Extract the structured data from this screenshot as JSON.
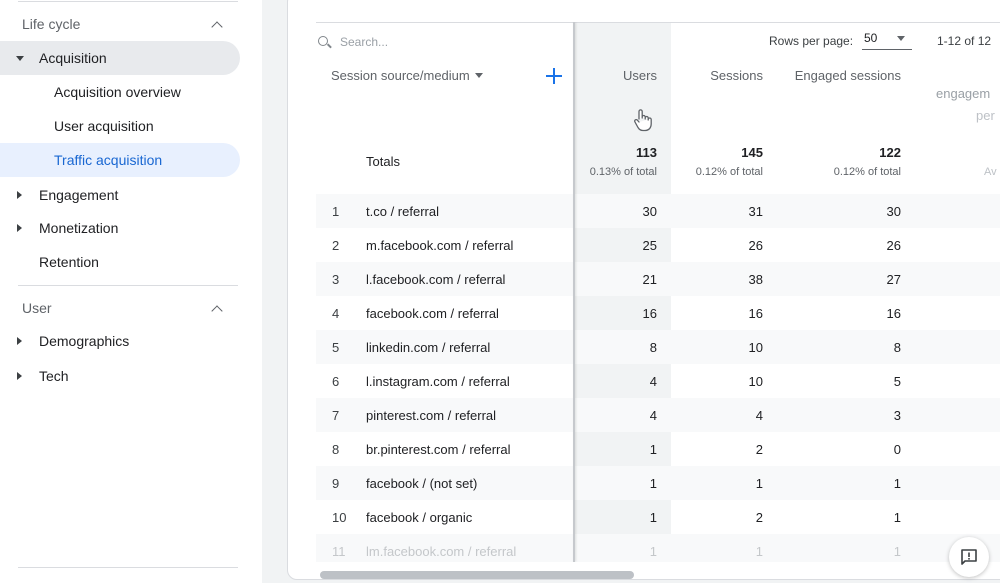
{
  "sidebar": {
    "life_cycle_label": "Life cycle",
    "acquisition_label": "Acquisition",
    "acquisition_children": [
      "Acquisition overview",
      "User acquisition",
      "Traffic acquisition"
    ],
    "engagement_label": "Engagement",
    "monetization_label": "Monetization",
    "retention_label": "Retention",
    "user_label": "User",
    "demographics_label": "Demographics",
    "tech_label": "Tech"
  },
  "toolbar": {
    "search_placeholder": "Search...",
    "rows_per_page_label": "Rows per page:",
    "rows_per_page_value": "50",
    "pager_text": "1-12 of 12"
  },
  "table": {
    "dimension_header": "Session source/medium",
    "metric_headers": [
      "Users",
      "Sessions",
      "Engaged sessions"
    ],
    "partial_header_1": "engagem",
    "partial_header_2": "per",
    "totals": {
      "label": "Totals",
      "values": [
        "113",
        "145",
        "122"
      ],
      "subs": [
        "0.13% of total",
        "0.12% of total",
        "0.12% of total"
      ],
      "partial_sub": "Av"
    },
    "rows": [
      {
        "n": "1",
        "src": "t.co / referral",
        "users": "30",
        "sessions": "31",
        "engaged": "30"
      },
      {
        "n": "2",
        "src": "m.facebook.com / referral",
        "users": "25",
        "sessions": "26",
        "engaged": "26"
      },
      {
        "n": "3",
        "src": "l.facebook.com / referral",
        "users": "21",
        "sessions": "38",
        "engaged": "27"
      },
      {
        "n": "4",
        "src": "facebook.com / referral",
        "users": "16",
        "sessions": "16",
        "engaged": "16"
      },
      {
        "n": "5",
        "src": "linkedin.com / referral",
        "users": "8",
        "sessions": "10",
        "engaged": "8"
      },
      {
        "n": "6",
        "src": "l.instagram.com / referral",
        "users": "4",
        "sessions": "10",
        "engaged": "5"
      },
      {
        "n": "7",
        "src": "pinterest.com / referral",
        "users": "4",
        "sessions": "4",
        "engaged": "3"
      },
      {
        "n": "8",
        "src": "br.pinterest.com / referral",
        "users": "1",
        "sessions": "2",
        "engaged": "0"
      },
      {
        "n": "9",
        "src": "facebook / (not set)",
        "users": "1",
        "sessions": "1",
        "engaged": "1"
      },
      {
        "n": "10",
        "src": "facebook / organic",
        "users": "1",
        "sessions": "2",
        "engaged": "1"
      },
      {
        "n": "11",
        "src": "lm.facebook.com / referral",
        "users": "1",
        "sessions": "1",
        "engaged": "1"
      }
    ]
  },
  "colors": {
    "accent": "#1a73e8",
    "active_nav_bg": "#e8f0fe",
    "active_nav_text": "#1967d2"
  },
  "icons": [
    "search-icon",
    "chevron-up-icon",
    "triangle-down-icon",
    "triangle-right-icon",
    "plus-icon",
    "hand-pointer-icon",
    "feedback-icon"
  ]
}
